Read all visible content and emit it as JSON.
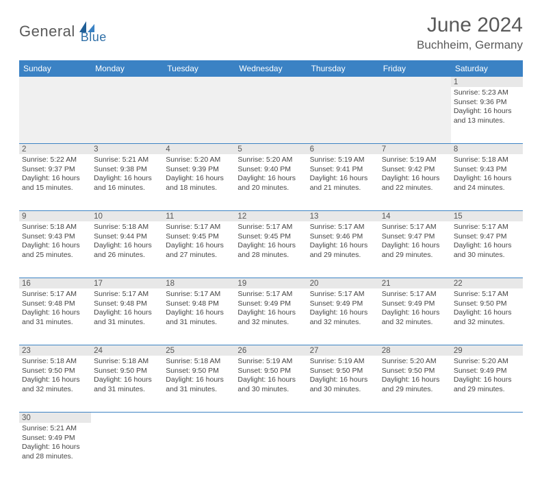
{
  "logo": {
    "main": "General",
    "sub": "Blue"
  },
  "title": {
    "month_year": "June 2024",
    "location": "Buchheim, Germany"
  },
  "colors": {
    "header_bg": "#3b82c4",
    "header_text": "#ffffff",
    "grid_line": "#3b82c4",
    "daynum_bg": "#e8e8e8",
    "text": "#444444",
    "logo_main": "#5a5a5a",
    "logo_sub": "#2f6fa7",
    "title_color": "#595959"
  },
  "day_headers": [
    "Sunday",
    "Monday",
    "Tuesday",
    "Wednesday",
    "Thursday",
    "Friday",
    "Saturday"
  ],
  "weeks": [
    [
      null,
      null,
      null,
      null,
      null,
      null,
      {
        "n": "1",
        "sr": "Sunrise: 5:23 AM",
        "ss": "Sunset: 9:36 PM",
        "dl": "Daylight: 16 hours and 13 minutes."
      }
    ],
    [
      {
        "n": "2",
        "sr": "Sunrise: 5:22 AM",
        "ss": "Sunset: 9:37 PM",
        "dl": "Daylight: 16 hours and 15 minutes."
      },
      {
        "n": "3",
        "sr": "Sunrise: 5:21 AM",
        "ss": "Sunset: 9:38 PM",
        "dl": "Daylight: 16 hours and 16 minutes."
      },
      {
        "n": "4",
        "sr": "Sunrise: 5:20 AM",
        "ss": "Sunset: 9:39 PM",
        "dl": "Daylight: 16 hours and 18 minutes."
      },
      {
        "n": "5",
        "sr": "Sunrise: 5:20 AM",
        "ss": "Sunset: 9:40 PM",
        "dl": "Daylight: 16 hours and 20 minutes."
      },
      {
        "n": "6",
        "sr": "Sunrise: 5:19 AM",
        "ss": "Sunset: 9:41 PM",
        "dl": "Daylight: 16 hours and 21 minutes."
      },
      {
        "n": "7",
        "sr": "Sunrise: 5:19 AM",
        "ss": "Sunset: 9:42 PM",
        "dl": "Daylight: 16 hours and 22 minutes."
      },
      {
        "n": "8",
        "sr": "Sunrise: 5:18 AM",
        "ss": "Sunset: 9:43 PM",
        "dl": "Daylight: 16 hours and 24 minutes."
      }
    ],
    [
      {
        "n": "9",
        "sr": "Sunrise: 5:18 AM",
        "ss": "Sunset: 9:43 PM",
        "dl": "Daylight: 16 hours and 25 minutes."
      },
      {
        "n": "10",
        "sr": "Sunrise: 5:18 AM",
        "ss": "Sunset: 9:44 PM",
        "dl": "Daylight: 16 hours and 26 minutes."
      },
      {
        "n": "11",
        "sr": "Sunrise: 5:17 AM",
        "ss": "Sunset: 9:45 PM",
        "dl": "Daylight: 16 hours and 27 minutes."
      },
      {
        "n": "12",
        "sr": "Sunrise: 5:17 AM",
        "ss": "Sunset: 9:45 PM",
        "dl": "Daylight: 16 hours and 28 minutes."
      },
      {
        "n": "13",
        "sr": "Sunrise: 5:17 AM",
        "ss": "Sunset: 9:46 PM",
        "dl": "Daylight: 16 hours and 29 minutes."
      },
      {
        "n": "14",
        "sr": "Sunrise: 5:17 AM",
        "ss": "Sunset: 9:47 PM",
        "dl": "Daylight: 16 hours and 29 minutes."
      },
      {
        "n": "15",
        "sr": "Sunrise: 5:17 AM",
        "ss": "Sunset: 9:47 PM",
        "dl": "Daylight: 16 hours and 30 minutes."
      }
    ],
    [
      {
        "n": "16",
        "sr": "Sunrise: 5:17 AM",
        "ss": "Sunset: 9:48 PM",
        "dl": "Daylight: 16 hours and 31 minutes."
      },
      {
        "n": "17",
        "sr": "Sunrise: 5:17 AM",
        "ss": "Sunset: 9:48 PM",
        "dl": "Daylight: 16 hours and 31 minutes."
      },
      {
        "n": "18",
        "sr": "Sunrise: 5:17 AM",
        "ss": "Sunset: 9:48 PM",
        "dl": "Daylight: 16 hours and 31 minutes."
      },
      {
        "n": "19",
        "sr": "Sunrise: 5:17 AM",
        "ss": "Sunset: 9:49 PM",
        "dl": "Daylight: 16 hours and 32 minutes."
      },
      {
        "n": "20",
        "sr": "Sunrise: 5:17 AM",
        "ss": "Sunset: 9:49 PM",
        "dl": "Daylight: 16 hours and 32 minutes."
      },
      {
        "n": "21",
        "sr": "Sunrise: 5:17 AM",
        "ss": "Sunset: 9:49 PM",
        "dl": "Daylight: 16 hours and 32 minutes."
      },
      {
        "n": "22",
        "sr": "Sunrise: 5:17 AM",
        "ss": "Sunset: 9:50 PM",
        "dl": "Daylight: 16 hours and 32 minutes."
      }
    ],
    [
      {
        "n": "23",
        "sr": "Sunrise: 5:18 AM",
        "ss": "Sunset: 9:50 PM",
        "dl": "Daylight: 16 hours and 32 minutes."
      },
      {
        "n": "24",
        "sr": "Sunrise: 5:18 AM",
        "ss": "Sunset: 9:50 PM",
        "dl": "Daylight: 16 hours and 31 minutes."
      },
      {
        "n": "25",
        "sr": "Sunrise: 5:18 AM",
        "ss": "Sunset: 9:50 PM",
        "dl": "Daylight: 16 hours and 31 minutes."
      },
      {
        "n": "26",
        "sr": "Sunrise: 5:19 AM",
        "ss": "Sunset: 9:50 PM",
        "dl": "Daylight: 16 hours and 30 minutes."
      },
      {
        "n": "27",
        "sr": "Sunrise: 5:19 AM",
        "ss": "Sunset: 9:50 PM",
        "dl": "Daylight: 16 hours and 30 minutes."
      },
      {
        "n": "28",
        "sr": "Sunrise: 5:20 AM",
        "ss": "Sunset: 9:50 PM",
        "dl": "Daylight: 16 hours and 29 minutes."
      },
      {
        "n": "29",
        "sr": "Sunrise: 5:20 AM",
        "ss": "Sunset: 9:49 PM",
        "dl": "Daylight: 16 hours and 29 minutes."
      }
    ],
    [
      {
        "n": "30",
        "sr": "Sunrise: 5:21 AM",
        "ss": "Sunset: 9:49 PM",
        "dl": "Daylight: 16 hours and 28 minutes."
      },
      null,
      null,
      null,
      null,
      null,
      null
    ]
  ]
}
